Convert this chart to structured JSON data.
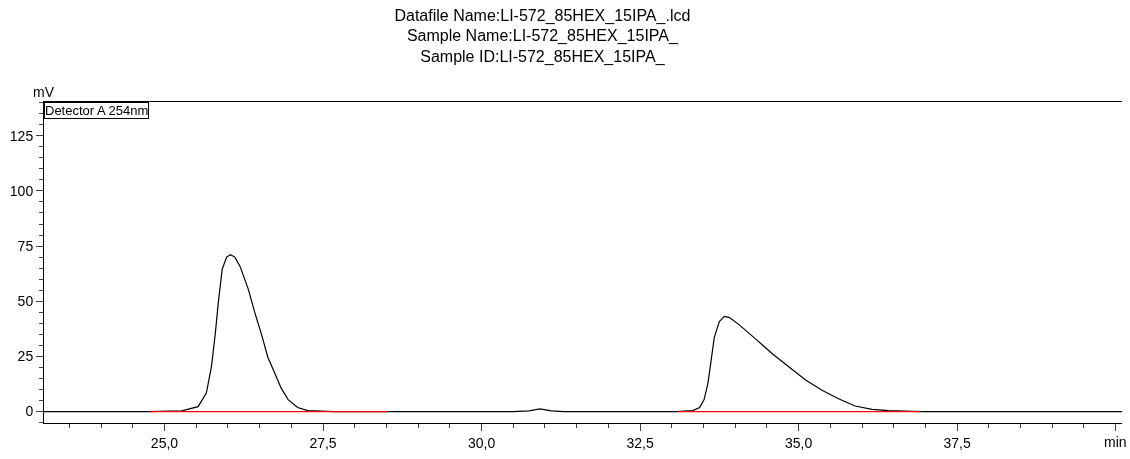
{
  "chart_data": {
    "type": "line",
    "title": "Datafile Name:LI-572_85HEX_15IPA_.lcd\nSample Name:LI-572_85HEX_15IPA_\nSample ID:LI-572_85HEX_15IPA_",
    "xlabel": "min",
    "ylabel": "mV",
    "annotations": [
      "Detector A 254nm"
    ],
    "series": [
      {
        "color": "#000000",
        "x": [
          23.1,
          24.75,
          25.27,
          25.53,
          25.66,
          25.74,
          25.8,
          25.85,
          25.91,
          25.98,
          26.04,
          26.11,
          26.19,
          26.32,
          26.42,
          26.53,
          26.63,
          26.74,
          26.84,
          26.95,
          27.1,
          27.26,
          27.68,
          30.5,
          30.75,
          30.92,
          31.1,
          31.3,
          33.07,
          33.33,
          33.44,
          33.51,
          33.57,
          33.62,
          33.67,
          33.75,
          33.83,
          33.91,
          34.06,
          34.33,
          34.59,
          34.85,
          35.11,
          35.37,
          35.63,
          35.89,
          36.16,
          36.42,
          36.94,
          40.1
        ],
        "values": [
          0,
          0,
          0.3,
          2.2,
          8.4,
          20.2,
          35.0,
          49.7,
          64.5,
          70.0,
          71.1,
          70.0,
          65.9,
          55.6,
          45.3,
          35.0,
          24.6,
          17.3,
          10.6,
          5.4,
          1.8,
          0.4,
          0,
          0,
          0.3,
          1.2,
          0.3,
          0,
          0,
          0.4,
          1.8,
          5.4,
          12.8,
          23.1,
          33.5,
          40.8,
          43.1,
          42.6,
          39.4,
          32.7,
          26.1,
          20.2,
          14.3,
          9.6,
          5.8,
          2.5,
          1.0,
          0.4,
          0,
          0
        ]
      },
      {
        "color": "#ff0000",
        "x": [
          24.78,
          28.52,
          30.8,
          33.1,
          36.91
        ],
        "values": [
          0,
          0,
          null,
          0,
          0
        ]
      }
    ],
    "xlim": [
      23.1,
      40.1
    ],
    "ylim": [
      -5.2,
      140.3
    ],
    "xticks": [
      {
        "value": 25,
        "label": "25,0"
      },
      {
        "value": 27.5,
        "label": "27,5"
      },
      {
        "value": 30,
        "label": "30,0"
      },
      {
        "value": 32.5,
        "label": "32,5"
      },
      {
        "value": 35,
        "label": "35,0"
      },
      {
        "value": 37.5,
        "label": "37,5"
      },
      {
        "value": 40,
        "label": null
      }
    ],
    "yticks": [
      0,
      25,
      50,
      75,
      100,
      125
    ],
    "marker": "none",
    "line_style": "solid"
  }
}
